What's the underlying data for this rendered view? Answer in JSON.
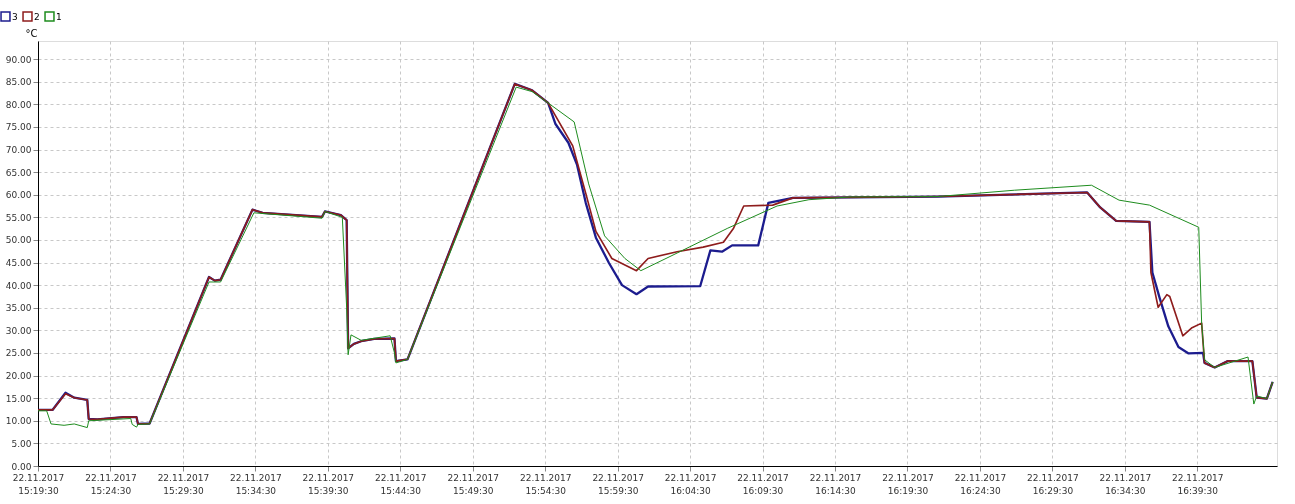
{
  "chart_data": {
    "type": "line",
    "ylabel": "°C",
    "legend": "top left",
    "grid": true,
    "line_style": "solid",
    "marker": "none",
    "xlim": [
      "2017-11-22T15:19:30",
      "2017-11-22T16:45:00"
    ],
    "xticks": [
      {
        "value": "2017-11-22T15:19:30",
        "label": "22.11.2017 15:19:30"
      },
      {
        "value": "2017-11-22T15:24:30",
        "label": "22.11.2017 15:24:30"
      },
      {
        "value": "2017-11-22T15:29:30",
        "label": "22.11.2017 15:29:30"
      },
      {
        "value": "2017-11-22T15:34:30",
        "label": "22.11.2017 15:34:30"
      },
      {
        "value": "2017-11-22T15:39:30",
        "label": "22.11.2017 15:39:30"
      },
      {
        "value": "2017-11-22T15:44:30",
        "label": "22.11.2017 15:44:30"
      },
      {
        "value": "2017-11-22T15:49:30",
        "label": "22.11.2017 15:49:30"
      },
      {
        "value": "2017-11-22T15:54:30",
        "label": "22.11.2017 15:54:30"
      },
      {
        "value": "2017-11-22T15:59:30",
        "label": "22.11.2017 15:59:30"
      },
      {
        "value": "2017-11-22T16:04:30",
        "label": "22.11.2017 16:04:30"
      },
      {
        "value": "2017-11-22T16:09:30",
        "label": "22.11.2017 16:09:30"
      },
      {
        "value": "2017-11-22T16:14:30",
        "label": "22.11.2017 16:14:30"
      },
      {
        "value": "2017-11-22T16:19:30",
        "label": "22.11.2017 16:19:30"
      },
      {
        "value": "2017-11-22T16:24:30",
        "label": "22.11.2017 16:24:30"
      },
      {
        "value": "2017-11-22T16:29:30",
        "label": "22.11.2017 16:29:30"
      },
      {
        "value": "2017-11-22T16:34:30",
        "label": "22.11.2017 16:34:30"
      },
      {
        "value": "2017-11-22T16:39:30",
        "label": "22.11.2017 16:39:30"
      }
    ],
    "ylim": [
      0,
      94
    ],
    "yticks": [
      {
        "value": 0,
        "label": "0.00"
      },
      {
        "value": 5,
        "label": "5.00"
      },
      {
        "value": 10,
        "label": "10.00"
      },
      {
        "value": 15,
        "label": "15.00"
      },
      {
        "value": 20,
        "label": "20.00"
      },
      {
        "value": 25,
        "label": "25.00"
      },
      {
        "value": 30,
        "label": "30.00"
      },
      {
        "value": 35,
        "label": "35.00"
      },
      {
        "value": 40,
        "label": "40.00"
      },
      {
        "value": 45,
        "label": "45.00"
      },
      {
        "value": 50,
        "label": "50.00"
      },
      {
        "value": 55,
        "label": "55.00"
      },
      {
        "value": 60,
        "label": "60.00"
      },
      {
        "value": 65,
        "label": "65.00"
      },
      {
        "value": 70,
        "label": "70.00"
      },
      {
        "value": 75,
        "label": "75.00"
      },
      {
        "value": 80,
        "label": "80.00"
      },
      {
        "value": 85,
        "label": "85.00"
      },
      {
        "value": 90,
        "label": "90.00"
      }
    ],
    "series": [
      {
        "name": "3",
        "color": "#1c1c8e",
        "x": [
          "2017-11-22T15:19:30",
          "2017-11-22T15:20:30",
          "2017-11-22T15:21:24",
          "2017-11-22T15:22:00",
          "2017-11-22T15:22:54",
          "2017-11-22T15:23:00",
          "2017-11-22T15:23:36",
          "2017-11-22T15:25:24",
          "2017-11-22T15:26:18",
          "2017-11-22T15:26:24",
          "2017-11-22T15:27:12",
          "2017-11-22T15:31:18",
          "2017-11-22T15:31:42",
          "2017-11-22T15:32:06",
          "2017-11-22T15:34:18",
          "2017-11-22T15:35:00",
          "2017-11-22T15:39:06",
          "2017-11-22T15:39:18",
          "2017-11-22T15:40:24",
          "2017-11-22T15:40:48",
          "2017-11-22T15:40:54",
          "2017-11-22T15:41:18",
          "2017-11-22T15:41:48",
          "2017-11-22T15:42:42",
          "2017-11-22T15:44:06",
          "2017-11-22T15:44:12",
          "2017-11-22T15:45:00",
          "2017-11-22T15:52:24",
          "2017-11-22T15:53:36",
          "2017-11-22T15:54:42",
          "2017-11-22T15:55:12",
          "2017-11-22T15:56:06",
          "2017-11-22T15:56:42",
          "2017-11-22T15:57:18",
          "2017-11-22T15:58:00",
          "2017-11-22T15:58:54",
          "2017-11-22T15:59:48",
          "2017-11-22T16:00:48",
          "2017-11-22T16:01:36",
          "2017-11-22T16:05:12",
          "2017-11-22T16:05:54",
          "2017-11-22T16:06:42",
          "2017-11-22T16:07:24",
          "2017-11-22T16:09:12",
          "2017-11-22T16:09:54",
          "2017-11-22T16:11:36",
          "2017-11-22T16:21:36",
          "2017-11-22T16:31:54",
          "2017-11-22T16:32:48",
          "2017-11-22T16:33:54",
          "2017-11-22T16:36:12",
          "2017-11-22T16:36:24",
          "2017-11-22T16:36:54",
          "2017-11-22T16:37:30",
          "2017-11-22T16:38:12",
          "2017-11-22T16:38:54",
          "2017-11-22T16:39:54",
          "2017-11-22T16:40:00",
          "2017-11-22T16:40:42",
          "2017-11-22T16:41:36",
          "2017-11-22T16:43:18",
          "2017-11-22T16:43:36",
          "2017-11-22T16:44:18",
          "2017-11-22T16:44:42"
        ],
        "values": [
          12.4,
          12.4,
          16.2,
          15.1,
          14.6,
          10.4,
          10.3,
          10.8,
          10.8,
          9.3,
          9.4,
          41.8,
          41.0,
          41.2,
          56.7,
          56.0,
          55.1,
          56.3,
          55.5,
          54.4,
          26.0,
          27.0,
          27.6,
          28.1,
          28.2,
          23.2,
          23.6,
          84.5,
          83.1,
          80.3,
          75.7,
          71.5,
          66.6,
          58.2,
          50.5,
          44.9,
          40.0,
          38.0,
          39.7,
          39.8,
          47.7,
          47.4,
          48.8,
          48.8,
          58.2,
          59.3,
          59.6,
          60.5,
          57.2,
          54.2,
          54.0,
          42.8,
          37.2,
          30.9,
          26.3,
          24.9,
          25.0,
          22.8,
          21.8,
          23.2,
          23.2,
          15.1,
          14.9,
          18.6
        ]
      },
      {
        "name": "2",
        "color": "#8e1c1c",
        "x": [
          "2017-11-22T15:19:30",
          "2017-11-22T15:20:30",
          "2017-11-22T15:21:24",
          "2017-11-22T15:22:00",
          "2017-11-22T15:22:54",
          "2017-11-22T15:23:00",
          "2017-11-22T15:23:36",
          "2017-11-22T15:25:24",
          "2017-11-22T15:26:18",
          "2017-11-22T15:26:24",
          "2017-11-22T15:27:12",
          "2017-11-22T15:31:18",
          "2017-11-22T15:31:42",
          "2017-11-22T15:32:06",
          "2017-11-22T15:34:18",
          "2017-11-22T15:35:00",
          "2017-11-22T15:39:06",
          "2017-11-22T15:39:18",
          "2017-11-22T15:40:24",
          "2017-11-22T15:40:48",
          "2017-11-22T15:40:54",
          "2017-11-22T15:41:18",
          "2017-11-22T15:41:48",
          "2017-11-22T15:42:42",
          "2017-11-22T15:44:06",
          "2017-11-22T15:44:12",
          "2017-11-22T15:45:00",
          "2017-11-22T15:52:24",
          "2017-11-22T15:53:36",
          "2017-11-22T15:54:42",
          "2017-11-22T15:56:24",
          "2017-11-22T15:57:18",
          "2017-11-22T15:58:00",
          "2017-11-22T15:59:06",
          "2017-11-22T16:00:48",
          "2017-11-22T16:01:36",
          "2017-11-22T16:03:36",
          "2017-11-22T16:05:24",
          "2017-11-22T16:06:48",
          "2017-11-22T16:07:30",
          "2017-11-22T16:08:12",
          "2017-11-22T16:10:12",
          "2017-11-22T16:11:36",
          "2017-11-22T16:21:36",
          "2017-11-22T16:31:54",
          "2017-11-22T16:32:48",
          "2017-11-22T16:33:54",
          "2017-11-22T16:36:12",
          "2017-11-22T16:36:18",
          "2017-11-22T16:36:48",
          "2017-11-22T16:37:24",
          "2017-11-22T16:37:36",
          "2017-11-22T16:38:30",
          "2017-11-22T16:39:06",
          "2017-11-22T16:39:48",
          "2017-11-22T16:40:00",
          "2017-11-22T16:40:42",
          "2017-11-22T16:41:36",
          "2017-11-22T16:43:18",
          "2017-11-22T16:43:36",
          "2017-11-22T16:44:18",
          "2017-11-22T16:44:42"
        ],
        "values": [
          12.4,
          12.4,
          16.0,
          15.1,
          14.6,
          10.4,
          10.3,
          10.8,
          10.8,
          9.3,
          9.4,
          41.8,
          41.0,
          41.2,
          56.7,
          56.0,
          55.1,
          56.3,
          55.5,
          54.4,
          26.0,
          27.0,
          27.6,
          28.1,
          28.2,
          23.2,
          23.6,
          84.5,
          83.1,
          80.3,
          70.8,
          60.3,
          51.9,
          45.9,
          43.2,
          45.9,
          47.4,
          48.4,
          49.5,
          52.6,
          57.5,
          57.7,
          59.3,
          59.6,
          60.5,
          57.2,
          54.2,
          54.0,
          42.8,
          35.1,
          37.9,
          37.5,
          28.8,
          30.5,
          31.6,
          22.8,
          21.8,
          23.2,
          23.2,
          15.1,
          14.9,
          18.6
        ]
      },
      {
        "name": "1",
        "color": "#1e8c1e",
        "x": [
          "2017-11-22T15:19:30",
          "2017-11-22T15:20:06",
          "2017-11-22T15:20:24",
          "2017-11-22T15:21:18",
          "2017-11-22T15:22:00",
          "2017-11-22T15:22:54",
          "2017-11-22T15:23:00",
          "2017-11-22T15:25:54",
          "2017-11-22T15:26:00",
          "2017-11-22T15:26:18",
          "2017-11-22T15:26:24",
          "2017-11-22T15:27:12",
          "2017-11-22T15:31:18",
          "2017-11-22T15:32:06",
          "2017-11-22T15:34:24",
          "2017-11-22T15:39:06",
          "2017-11-22T15:39:18",
          "2017-11-22T15:40:30",
          "2017-11-22T15:40:48",
          "2017-11-22T15:40:54",
          "2017-11-22T15:41:06",
          "2017-11-22T15:41:48",
          "2017-11-22T15:43:48",
          "2017-11-22T15:44:06",
          "2017-11-22T15:44:12",
          "2017-11-22T15:45:00",
          "2017-11-22T15:52:30",
          "2017-11-22T15:53:36",
          "2017-11-22T15:54:42",
          "2017-11-22T15:56:30",
          "2017-11-22T15:57:30",
          "2017-11-22T15:58:36",
          "2017-11-22T16:00:00",
          "2017-11-22T16:01:06",
          "2017-11-22T16:03:36",
          "2017-11-22T16:07:06",
          "2017-11-22T16:10:30",
          "2017-11-22T16:12:42",
          "2017-11-22T16:15:30",
          "2017-11-22T16:21:36",
          "2017-11-22T16:26:54",
          "2017-11-22T16:32:12",
          "2017-11-22T16:34:06",
          "2017-11-22T16:36:12",
          "2017-11-22T16:39:36",
          "2017-11-22T16:39:48",
          "2017-11-22T16:40:00",
          "2017-11-22T16:40:42",
          "2017-11-22T16:43:00",
          "2017-11-22T16:43:24",
          "2017-11-22T16:43:36",
          "2017-11-22T16:44:18",
          "2017-11-22T16:44:42"
        ],
        "values": [
          12.2,
          12.2,
          9.3,
          9.0,
          9.3,
          8.5,
          10.0,
          10.5,
          9.2,
          8.6,
          9.2,
          9.3,
          40.7,
          40.7,
          56.0,
          54.8,
          56.3,
          55.0,
          35.0,
          24.6,
          29.0,
          27.8,
          28.8,
          25.0,
          22.8,
          23.6,
          83.8,
          82.8,
          80.3,
          76.1,
          62.4,
          50.9,
          45.9,
          43.2,
          47.1,
          52.6,
          57.5,
          58.9,
          59.5,
          59.6,
          61.0,
          62.1,
          58.8,
          57.7,
          52.8,
          31.6,
          23.5,
          21.8,
          24.1,
          13.7,
          15.5,
          14.9,
          18.6
        ]
      }
    ]
  }
}
